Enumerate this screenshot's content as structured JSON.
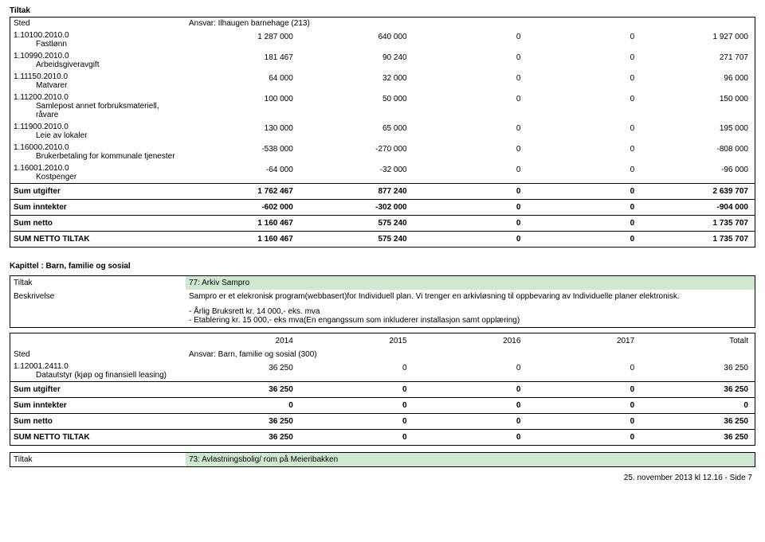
{
  "top_tiltak_label": "Tiltak",
  "table1": {
    "sted_label": "Sted",
    "ansvar_label": "Ansvar: Ilhaugen barnehage (213)",
    "rows": [
      {
        "code": "1.10100.2010.0",
        "name": "Fastlønn",
        "v": [
          "1 287 000",
          "640 000",
          "0",
          "0",
          "1 927 000"
        ]
      },
      {
        "code": "1.10990.2010.0",
        "name": "Arbeidsgiveravgift",
        "v": [
          "181 467",
          "90 240",
          "0",
          "0",
          "271 707"
        ]
      },
      {
        "code": "1.11150.2010.0",
        "name": "Matvarer",
        "v": [
          "64 000",
          "32 000",
          "0",
          "0",
          "96 000"
        ]
      },
      {
        "code": "1.11200.2010.0",
        "name": "Samlepost annet forbruksmateriell, råvare",
        "v": [
          "100 000",
          "50 000",
          "0",
          "0",
          "150 000"
        ]
      },
      {
        "code": "1.11900.2010.0",
        "name": "Leie av lokaler",
        "v": [
          "130 000",
          "65 000",
          "0",
          "0",
          "195 000"
        ]
      },
      {
        "code": "1.16000.2010.0",
        "name": "Brukerbetaling for kommunale tjenester",
        "v": [
          "-538 000",
          "-270 000",
          "0",
          "0",
          "-808 000"
        ]
      },
      {
        "code": "1.16001.2010.0",
        "name": "Kostpenger",
        "v": [
          "-64 000",
          "-32 000",
          "0",
          "0",
          "-96 000"
        ]
      }
    ],
    "sums": [
      {
        "label": "Sum utgifter",
        "v": [
          "1 762 467",
          "877 240",
          "0",
          "0",
          "2 639 707"
        ]
      },
      {
        "label": "Sum inntekter",
        "v": [
          "-602 000",
          "-302 000",
          "0",
          "0",
          "-904 000"
        ]
      },
      {
        "label": "Sum netto",
        "v": [
          "1 160 467",
          "575 240",
          "0",
          "0",
          "1 735 707"
        ]
      },
      {
        "label": "SUM NETTO TILTAK",
        "v": [
          "1 160 467",
          "575 240",
          "0",
          "0",
          "1 735 707"
        ]
      }
    ]
  },
  "chapter": "Kapittel : Barn, familie og sosial",
  "meta": {
    "tiltak_label": "Tiltak",
    "tiltak_value": "77: Arkiv Sampro",
    "besk_label": "Beskrivelse",
    "besk_value": "Sampro er et elekronisk program(webbasert)for Individuell plan. Vi trenger en arkivløsning til oppbevaring av Individuelle planer elektronisk.",
    "line2": "- Årlig Bruksrett kr. 14 000,- eks. mva",
    "line3": "- Etablering kr. 15 000,- eks mva(En engangssum som inkluderer installasjon samt opplæring)"
  },
  "table2": {
    "headers": [
      "2014",
      "2015",
      "2016",
      "2017",
      "Totalt"
    ],
    "sted_label": "Sted",
    "ansvar_label": "Ansvar: Barn, familie og sosial (300)",
    "rows": [
      {
        "code": "1.12001.2411.0",
        "name": "Datautstyr (kjøp og finansiell leasing)",
        "v": [
          "36 250",
          "0",
          "0",
          "0",
          "36 250"
        ]
      }
    ],
    "sums": [
      {
        "label": "Sum utgifter",
        "v": [
          "36 250",
          "0",
          "0",
          "0",
          "36 250"
        ]
      },
      {
        "label": "Sum inntekter",
        "v": [
          "0",
          "0",
          "0",
          "0",
          "0"
        ]
      },
      {
        "label": "Sum netto",
        "v": [
          "36 250",
          "0",
          "0",
          "0",
          "36 250"
        ]
      },
      {
        "label": "SUM NETTO TILTAK",
        "v": [
          "36 250",
          "0",
          "0",
          "0",
          "36 250"
        ]
      }
    ]
  },
  "meta2": {
    "tiltak_label": "Tiltak",
    "tiltak_value": "73: Avlastningsbolig/ rom på Meieribakken"
  },
  "footer": "25. november 2013 kl 12.16 - Side 7",
  "colors": {
    "border": "#000000",
    "highlight": "#d0e8d0",
    "text": "#000000",
    "bg": "#ffffff"
  }
}
